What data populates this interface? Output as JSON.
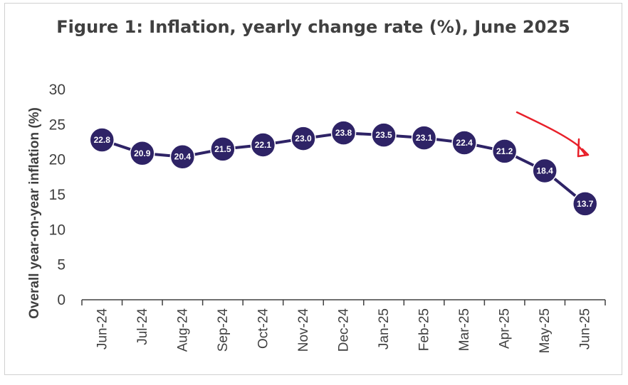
{
  "chart_data": {
    "type": "line",
    "title": "Figure 1: Inflation, yearly change rate (%), June 2025",
    "xlabel": "",
    "ylabel": "Overall year-on-year inflation (%)",
    "categories": [
      "Jun-24",
      "Jul-24",
      "Aug-24",
      "Sep-24",
      "Oct-24",
      "Nov-24",
      "Dec-24",
      "Jan-25",
      "Feb-25",
      "Mar-25",
      "Apr-25",
      "May-25",
      "Jun-25"
    ],
    "series": [
      {
        "values": [
          22.8,
          20.9,
          20.4,
          21.5,
          22.1,
          23.0,
          23.8,
          23.5,
          23.1,
          22.4,
          21.2,
          18.4,
          13.7
        ]
      }
    ],
    "data_labels": [
      "22.8",
      "20.9",
      "20.4",
      "21.5",
      "22.1",
      "23.0",
      "23.8",
      "23.5",
      "23.1",
      "22.4",
      "21.2",
      "18.4",
      "13.7"
    ],
    "yticks": [
      "0",
      "5",
      "10",
      "15",
      "20",
      "25",
      "30"
    ],
    "ylim": [
      0,
      30
    ],
    "grid": false,
    "legend": "none",
    "colors": {
      "line": "#2e2366",
      "marker": "#2e2366",
      "marker_text": "#ffffff",
      "annotation": "#e8202a",
      "axis": "#404040"
    },
    "annotation": {
      "type": "hand-drawn-arrow",
      "color": "#e8202a",
      "points_to": "Jun-25"
    }
  }
}
